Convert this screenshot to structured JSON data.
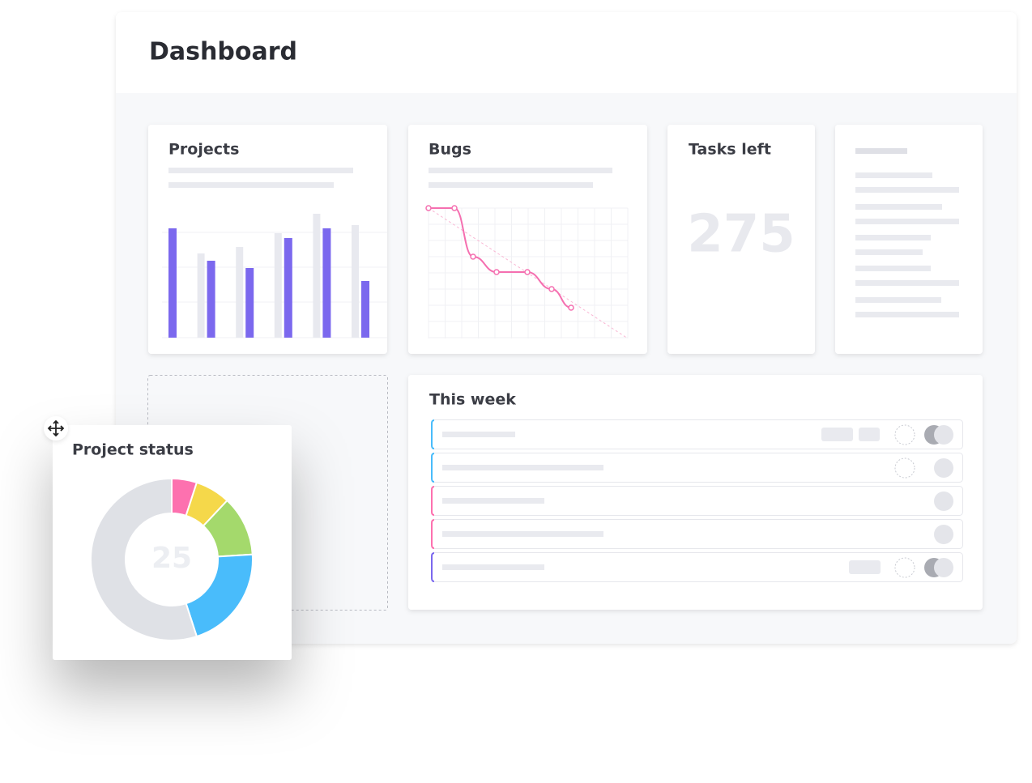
{
  "header": {
    "title": "Dashboard"
  },
  "chart_data": [
    {
      "type": "bar",
      "title": "Projects",
      "categories": [
        null,
        null,
        null,
        null,
        null,
        null
      ],
      "series": [
        {
          "color": "#e8e9ef",
          "values": [
            null,
            104,
            112,
            129,
            153,
            139
          ]
        },
        {
          "color": "#7b68ee",
          "values": [
            135,
            95,
            86,
            123,
            135,
            70
          ]
        }
      ]
    },
    {
      "type": "line",
      "title": "Bugs",
      "color": "#f56fb0",
      "x": [
        0,
        32,
        55,
        84,
        122,
        152,
        176
      ],
      "values": [
        161,
        161,
        101,
        82,
        82,
        61,
        38
      ]
    },
    {
      "type": "pie",
      "title": "Project status",
      "center_value": 25,
      "values": [
        5,
        7,
        12,
        21,
        55
      ],
      "colors": [
        "#fd71af",
        "#f5d84a",
        "#a4d96c",
        "#49bcfb",
        "#dfe1e6"
      ]
    }
  ],
  "tasks_left": {
    "title": "Tasks left",
    "value": 275
  },
  "this_week": {
    "title": "This week"
  }
}
